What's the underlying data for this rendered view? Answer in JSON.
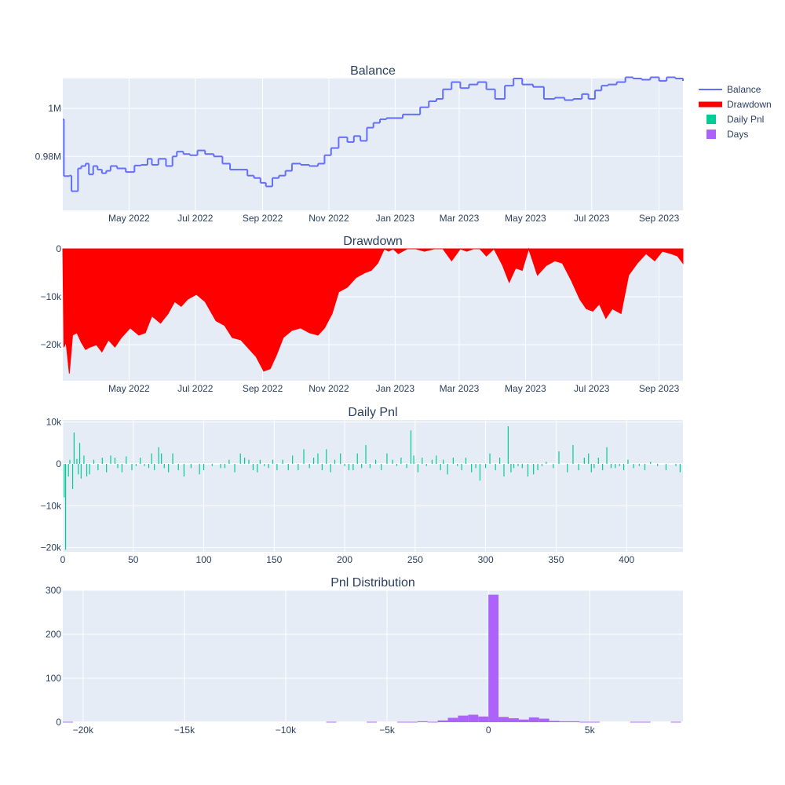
{
  "chart_data": [
    {
      "type": "line",
      "title": "Balance",
      "series": [
        {
          "name": "Balance",
          "color": "#636efa"
        }
      ],
      "x_axis_type": "date",
      "xlim": [
        "2022-03-01",
        "2023-09-23"
      ],
      "ylim": [
        0.9575,
        1.0125
      ],
      "y_tick_labels": [
        "0.98M",
        "1M"
      ],
      "y_tick_values": [
        0.98,
        1.0
      ],
      "x_tick_labels": [
        "May 2022",
        "Jul 2022",
        "Sep 2022",
        "Nov 2022",
        "Jan 2023",
        "Mar 2023",
        "May 2023",
        "Jul 2023",
        "Sep 2023"
      ],
      "x_tick_values": [
        "2022-05-01",
        "2022-07-01",
        "2022-09-01",
        "2022-11-01",
        "2023-01-01",
        "2023-03-01",
        "2023-05-01",
        "2023-07-01",
        "2023-09-01"
      ],
      "unit": "M",
      "x": [
        "2022-03-01",
        "2022-03-02",
        "2022-03-04",
        "2022-03-07",
        "2022-03-09",
        "2022-03-12",
        "2022-03-15",
        "2022-03-18",
        "2022-03-22",
        "2022-03-25",
        "2022-03-29",
        "2022-04-02",
        "2022-04-06",
        "2022-04-10",
        "2022-04-14",
        "2022-04-20",
        "2022-04-28",
        "2022-05-06",
        "2022-05-12",
        "2022-05-18",
        "2022-05-22",
        "2022-05-28",
        "2022-06-04",
        "2022-06-10",
        "2022-06-14",
        "2022-06-20",
        "2022-06-26",
        "2022-07-03",
        "2022-07-10",
        "2022-07-18",
        "2022-07-26",
        "2022-08-02",
        "2022-08-10",
        "2022-08-18",
        "2022-08-24",
        "2022-08-30",
        "2022-09-04",
        "2022-09-10",
        "2022-09-16",
        "2022-09-22",
        "2022-09-28",
        "2022-10-06",
        "2022-10-14",
        "2022-10-22",
        "2022-10-28",
        "2022-11-03",
        "2022-11-10",
        "2022-11-18",
        "2022-11-24",
        "2022-11-30",
        "2022-12-06",
        "2022-12-12",
        "2022-12-18",
        "2022-12-24",
        "2022-12-30",
        "2023-01-08",
        "2023-01-16",
        "2023-01-24",
        "2023-02-01",
        "2023-02-08",
        "2023-02-14",
        "2023-02-22",
        "2023-03-02",
        "2023-03-10",
        "2023-03-18",
        "2023-03-26",
        "2023-04-03",
        "2023-04-12",
        "2023-04-20",
        "2023-04-28",
        "2023-05-08",
        "2023-05-18",
        "2023-05-28",
        "2023-06-06",
        "2023-06-14",
        "2023-06-22",
        "2023-06-28",
        "2023-07-04",
        "2023-07-10",
        "2023-07-16",
        "2023-07-24",
        "2023-08-01",
        "2023-08-08",
        "2023-08-16",
        "2023-08-24",
        "2023-09-01",
        "2023-09-08",
        "2023-09-16",
        "2023-09-23"
      ],
      "values": [
        0.9955,
        0.9718,
        0.9718,
        0.972,
        0.9655,
        0.9655,
        0.975,
        0.976,
        0.977,
        0.9725,
        0.976,
        0.9745,
        0.973,
        0.974,
        0.976,
        0.975,
        0.9735,
        0.9762,
        0.9765,
        0.979,
        0.9765,
        0.979,
        0.976,
        0.98,
        0.982,
        0.981,
        0.9805,
        0.9825,
        0.981,
        0.98,
        0.977,
        0.9745,
        0.9745,
        0.972,
        0.971,
        0.969,
        0.9675,
        0.971,
        0.972,
        0.974,
        0.977,
        0.9765,
        0.976,
        0.977,
        0.9805,
        0.9835,
        0.988,
        0.986,
        0.9885,
        0.9865,
        0.992,
        0.994,
        0.9955,
        0.996,
        0.996,
        0.9975,
        0.9975,
        1.0005,
        1.003,
        1.004,
        1.008,
        1.011,
        1.0085,
        1.01,
        1.011,
        1.008,
        1.004,
        1.0095,
        1.0125,
        1.01,
        1.009,
        1.004,
        1.0045,
        1.0035,
        1.004,
        1.006,
        1.004,
        1.0075,
        1.0095,
        1.01,
        1.011,
        1.013,
        1.0125,
        1.012,
        1.013,
        1.0115,
        1.013,
        1.0125,
        1.0115
      ]
    },
    {
      "type": "area",
      "title": "Drawdown",
      "series": [
        {
          "name": "Drawdown",
          "color": "#ff0000"
        }
      ],
      "x_axis_type": "date",
      "xlim": [
        "2022-03-01",
        "2023-09-23"
      ],
      "ylim": [
        -27500,
        0
      ],
      "y_tick_labels": [
        "−20k",
        "−10k",
        "0"
      ],
      "y_tick_values": [
        -20000,
        -10000,
        0
      ],
      "x_tick_labels": [
        "May 2022",
        "Jul 2022",
        "Sep 2022",
        "Nov 2022",
        "Jan 2023",
        "Mar 2023",
        "May 2023",
        "Jul 2023",
        "Sep 2023"
      ],
      "x_tick_values": [
        "2022-05-01",
        "2022-07-01",
        "2022-09-01",
        "2022-11-01",
        "2023-01-01",
        "2023-03-01",
        "2023-05-01",
        "2023-07-01",
        "2023-09-01"
      ],
      "x": [
        "2022-03-01",
        "2022-03-02",
        "2022-03-04",
        "2022-03-07",
        "2022-03-10",
        "2022-03-14",
        "2022-03-18",
        "2022-03-22",
        "2022-03-26",
        "2022-04-01",
        "2022-04-06",
        "2022-04-12",
        "2022-04-18",
        "2022-04-24",
        "2022-05-02",
        "2022-05-10",
        "2022-05-16",
        "2022-05-22",
        "2022-05-30",
        "2022-06-06",
        "2022-06-12",
        "2022-06-18",
        "2022-06-24",
        "2022-07-02",
        "2022-07-10",
        "2022-07-20",
        "2022-07-28",
        "2022-08-04",
        "2022-08-12",
        "2022-08-20",
        "2022-08-26",
        "2022-09-02",
        "2022-09-08",
        "2022-09-14",
        "2022-09-20",
        "2022-09-28",
        "2022-10-06",
        "2022-10-14",
        "2022-10-22",
        "2022-10-28",
        "2022-11-04",
        "2022-11-10",
        "2022-11-18",
        "2022-11-26",
        "2022-12-04",
        "2022-12-10",
        "2022-12-16",
        "2022-12-22",
        "2022-12-26",
        "2022-12-30",
        "2023-01-04",
        "2023-01-12",
        "2023-01-20",
        "2023-01-28",
        "2023-02-06",
        "2023-02-14",
        "2023-02-22",
        "2023-03-02",
        "2023-03-08",
        "2023-03-14",
        "2023-03-20",
        "2023-03-26",
        "2023-04-02",
        "2023-04-10",
        "2023-04-16",
        "2023-04-22",
        "2023-04-28",
        "2023-05-04",
        "2023-05-12",
        "2023-05-20",
        "2023-05-28",
        "2023-06-04",
        "2023-06-12",
        "2023-06-20",
        "2023-06-26",
        "2023-07-02",
        "2023-07-08",
        "2023-07-14",
        "2023-07-20",
        "2023-07-28",
        "2023-08-04",
        "2023-08-12",
        "2023-08-20",
        "2023-08-28",
        "2023-09-04",
        "2023-09-12",
        "2023-09-18",
        "2023-09-23"
      ],
      "values": [
        0,
        -20500,
        -19500,
        -26000,
        -18000,
        -17500,
        -19500,
        -21000,
        -20500,
        -20000,
        -21500,
        -19000,
        -20500,
        -18500,
        -16500,
        -18000,
        -17500,
        -14000,
        -15500,
        -13500,
        -11000,
        -12000,
        -10500,
        -9500,
        -11000,
        -15000,
        -16000,
        -18500,
        -19000,
        -21000,
        -22500,
        -25500,
        -25000,
        -22000,
        -18500,
        -17000,
        -16500,
        -17500,
        -18000,
        -16500,
        -13500,
        -9000,
        -8000,
        -6000,
        -5000,
        -4500,
        -3000,
        0,
        -500,
        0,
        -1000,
        0,
        0,
        -500,
        0,
        0,
        -2500,
        0,
        -500,
        0,
        0,
        -1500,
        0,
        -3500,
        -7000,
        -4000,
        -4500,
        0,
        -5500,
        -3500,
        -2500,
        -3000,
        -6500,
        -10500,
        -12500,
        -13000,
        -11500,
        -14500,
        -12500,
        -13500,
        -5500,
        -3000,
        -1000,
        -2500,
        -500,
        -1000,
        -1500,
        -3000
      ]
    },
    {
      "type": "bar",
      "title": "Daily Pnl",
      "series": [
        {
          "name": "Daily Pnl",
          "color": "#00cc96"
        }
      ],
      "xlim": [
        0,
        440
      ],
      "ylim": [
        -21000,
        10500
      ],
      "y_tick_labels": [
        "−20k",
        "−10k",
        "0",
        "10k"
      ],
      "y_tick_values": [
        -20000,
        -10000,
        0,
        10000
      ],
      "x_tick_labels": [
        "0",
        "50",
        "100",
        "150",
        "200",
        "250",
        "300",
        "350",
        "400"
      ],
      "x_tick_values": [
        0,
        50,
        100,
        150,
        200,
        250,
        300,
        350,
        400
      ],
      "x": [
        1,
        2,
        4,
        5,
        7,
        8,
        10,
        11,
        12,
        13,
        15,
        17,
        19,
        22,
        25,
        28,
        31,
        34,
        37,
        39,
        42,
        45,
        49,
        52,
        55,
        58,
        61,
        63,
        65,
        68,
        70,
        72,
        75,
        78,
        82,
        86,
        91,
        97,
        100,
        106,
        112,
        115,
        118,
        122,
        126,
        129,
        132,
        135,
        138,
        140,
        143,
        146,
        149,
        152,
        156,
        160,
        163,
        167,
        171,
        175,
        178,
        181,
        184,
        187,
        190,
        193,
        197,
        200,
        203,
        206,
        209,
        212,
        215,
        218,
        222,
        226,
        230,
        234,
        237,
        240,
        244,
        247,
        249,
        252,
        255,
        258,
        262,
        265,
        268,
        270,
        273,
        277,
        280,
        283,
        286,
        290,
        293,
        296,
        300,
        303,
        307,
        310,
        313,
        316,
        318,
        320,
        323,
        326,
        330,
        334,
        337,
        340,
        343,
        348,
        352,
        358,
        362,
        366,
        370,
        373,
        375,
        377,
        380,
        383,
        386,
        389,
        392,
        395,
        398,
        401,
        405,
        409,
        413,
        417,
        422,
        428,
        435,
        438
      ],
      "values": [
        -8000,
        -20500,
        -3000,
        1000,
        -6000,
        7500,
        1200,
        -2500,
        5000,
        -3500,
        2000,
        -3000,
        -2500,
        1000,
        -1500,
        1500,
        -2000,
        2000,
        1500,
        -1000,
        -2000,
        1800,
        -1500,
        -500,
        1500,
        -500,
        -1000,
        2500,
        -1500,
        4000,
        2500,
        -1000,
        -2000,
        2500,
        -1500,
        -3000,
        -1000,
        -2500,
        -1500,
        -500,
        -1000,
        -1000,
        1000,
        -2000,
        2500,
        1500,
        1000,
        -1500,
        -2000,
        1000,
        -500,
        -1000,
        1000,
        -1500,
        1000,
        -1500,
        2000,
        -1500,
        3500,
        -1000,
        1500,
        2500,
        -1500,
        3500,
        -2000,
        1000,
        2500,
        -500,
        -1500,
        -1500,
        2500,
        -1000,
        4500,
        -1000,
        1000,
        -1500,
        2500,
        1000,
        -500,
        1500,
        -1000,
        8000,
        2000,
        -2000,
        1500,
        -500,
        1000,
        2000,
        -1500,
        1000,
        -2500,
        1500,
        -500,
        -1500,
        1500,
        -2000,
        -1000,
        -4000,
        -1000,
        2500,
        -1500,
        1500,
        -3000,
        9000,
        -2000,
        -1000,
        -500,
        -1000,
        -3000,
        -2500,
        -1500,
        -500,
        500,
        -1000,
        3000,
        -2000,
        4500,
        -1500,
        1500,
        2500,
        -2000,
        -1000,
        1500,
        -1500,
        4000,
        -1000,
        -1000,
        -500,
        -1500,
        1000,
        -1000,
        -500,
        -1500,
        500,
        -500,
        -1500,
        -500,
        -2000
      ]
    },
    {
      "type": "bar",
      "title": "Pnl Distribution",
      "series": [
        {
          "name": "Days",
          "color": "#ab63fa"
        }
      ],
      "xlim": [
        -21000,
        9600
      ],
      "ylim": [
        0,
        300
      ],
      "y_tick_labels": [
        "0",
        "100",
        "200",
        "300"
      ],
      "y_tick_values": [
        0,
        100,
        200,
        300
      ],
      "x_tick_labels": [
        "−20k",
        "−15k",
        "−10k",
        "−5k",
        "0",
        "5k"
      ],
      "x_tick_values": [
        -20000,
        -15000,
        -10000,
        -5000,
        0,
        5000
      ],
      "bin_width": 500,
      "x": [
        -20750,
        -7750,
        -5750,
        -4250,
        -3750,
        -3250,
        -2750,
        -2250,
        -1750,
        -1250,
        -750,
        -250,
        250,
        750,
        1250,
        1750,
        2250,
        2750,
        3250,
        3750,
        4250,
        4750,
        5250,
        7250,
        7750,
        9250
      ],
      "values": [
        1,
        1,
        1,
        1,
        1,
        2,
        1,
        4,
        10,
        15,
        17,
        13,
        290,
        12,
        9,
        6,
        11,
        8,
        3,
        2,
        2,
        1,
        1,
        1,
        1,
        1
      ]
    }
  ],
  "legend": [
    {
      "label": "Balance",
      "color": "#636efa",
      "symbol": "line"
    },
    {
      "label": "Drawdown",
      "color": "#ff0000",
      "symbol": "area-line"
    },
    {
      "label": "Daily Pnl",
      "color": "#00cc96",
      "symbol": "square"
    },
    {
      "label": "Days",
      "color": "#ab63fa",
      "symbol": "square"
    }
  ]
}
